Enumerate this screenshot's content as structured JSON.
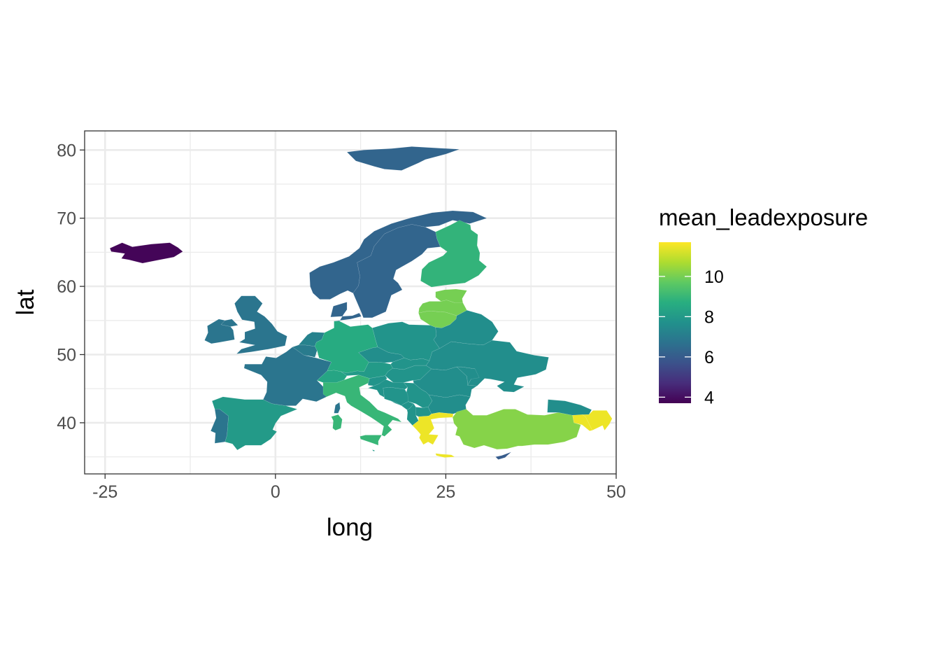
{
  "x_axis": {
    "label": "long",
    "ticks": [
      -25,
      0,
      25,
      50
    ],
    "range": [
      -28,
      50
    ]
  },
  "y_axis": {
    "label": "lat",
    "ticks": [
      40,
      50,
      60,
      70,
      80
    ],
    "range": [
      32.5,
      82.8
    ]
  },
  "legend": {
    "title": "mean_leadexposure",
    "ticks": [
      4,
      6,
      8,
      10
    ],
    "range": [
      3.7,
      11.7
    ],
    "colors": [
      "#440154",
      "#472d7b",
      "#3b528b",
      "#2c728e",
      "#21918c",
      "#28ae80",
      "#5ec962",
      "#addc30",
      "#fde725"
    ],
    "position": "right"
  },
  "chart_data": {
    "type": "choropleth",
    "value_name": "mean_leadexposure",
    "grid": true,
    "regions": [
      {
        "region": "Iceland",
        "value": 3.8
      },
      {
        "region": "Svalbard",
        "value": 6.3
      },
      {
        "region": "Norway",
        "value": 6.3
      },
      {
        "region": "Sweden",
        "value": 6.3
      },
      {
        "region": "Finland",
        "value": 8.9
      },
      {
        "region": "Estonia",
        "value": 10.0
      },
      {
        "region": "Latvia",
        "value": 10.0
      },
      {
        "region": "Lithuania",
        "value": 10.0
      },
      {
        "region": "Denmark",
        "value": 6.3
      },
      {
        "region": "United Kingdom",
        "value": 6.8
      },
      {
        "region": "Ireland",
        "value": 6.8
      },
      {
        "region": "France",
        "value": 6.8
      },
      {
        "region": "Belgium",
        "value": 7.0
      },
      {
        "region": "Netherlands",
        "value": 7.2
      },
      {
        "region": "Germany",
        "value": 8.6
      },
      {
        "region": "Poland",
        "value": 7.8
      },
      {
        "region": "Czechia",
        "value": 7.6
      },
      {
        "region": "Slovakia",
        "value": 7.8
      },
      {
        "region": "Austria",
        "value": 8.0
      },
      {
        "region": "Switzerland",
        "value": 8.4
      },
      {
        "region": "Hungary",
        "value": 7.8
      },
      {
        "region": "Belarus",
        "value": 7.6
      },
      {
        "region": "Ukraine",
        "value": 7.6
      },
      {
        "region": "Moldova",
        "value": 7.6
      },
      {
        "region": "Romania",
        "value": 7.6
      },
      {
        "region": "Bulgaria",
        "value": 7.6
      },
      {
        "region": "Serbia",
        "value": 7.8
      },
      {
        "region": "Croatia",
        "value": 7.8
      },
      {
        "region": "Bosnia and Herzegovina",
        "value": 7.8
      },
      {
        "region": "Montenegro",
        "value": 7.8
      },
      {
        "region": "Albania",
        "value": 7.8
      },
      {
        "region": "North Macedonia",
        "value": 7.8
      },
      {
        "region": "Slovenia",
        "value": 7.8
      },
      {
        "region": "Italy",
        "value": 9.0
      },
      {
        "region": "Spain",
        "value": 8.0
      },
      {
        "region": "Portugal",
        "value": 6.8
      },
      {
        "region": "Greece",
        "value": 11.5
      },
      {
        "region": "Turkey",
        "value": 10.2
      },
      {
        "region": "Georgia",
        "value": 7.6
      },
      {
        "region": "Armenia",
        "value": 11.5
      },
      {
        "region": "Azerbaijan",
        "value": 11.5
      },
      {
        "region": "Cyprus",
        "value": 6.0
      },
      {
        "region": "Malta",
        "value": 8.0
      }
    ]
  }
}
